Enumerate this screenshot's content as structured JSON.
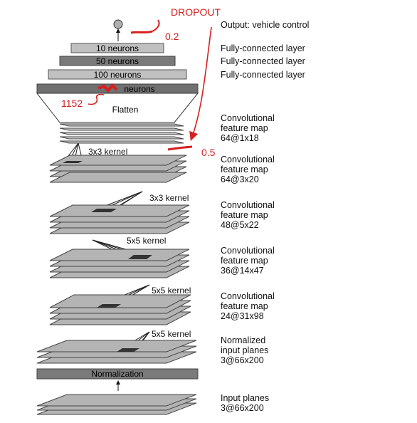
{
  "annotations": {
    "dropout": "DROPOUT",
    "rate_fc": "0.2",
    "rate_conv": "0.5",
    "flatten_count": "1152"
  },
  "layers": {
    "output": "Output: vehicle control",
    "fc1": "Fully-connected layer",
    "fc2": "Fully-connected layer",
    "fc3": "Fully-connected layer",
    "conv5": "Convolutional\nfeature map\n64@1x18",
    "conv4": "Convolutional\nfeature map\n64@3x20",
    "conv3": "Convolutional\nfeature map\n48@5x22",
    "conv2": "Convolutional\nfeature map\n36@14x47",
    "conv1": "Convolutional\nfeature map\n24@31x98",
    "normalized": "Normalized\ninput planes\n3@66x200",
    "input": "Input planes\n3@66x200"
  },
  "bars": {
    "n10": "10 neurons",
    "n50": "50 neurons",
    "n100": "100 neurons",
    "n_flat_suffix": "neurons",
    "flatten": "Flatten",
    "normalization": "Normalization"
  },
  "kernels": {
    "k1": "3x3 kernel",
    "k2": "3x3 kernel",
    "k3": "5x5 kernel",
    "k4": "5x5 kernel",
    "k5": "5x5 kernel"
  },
  "colors": {
    "annotation": "#d62020",
    "dark_bar": "#707070",
    "light_bar": "#c0c0c0",
    "plane": "#b4b4b4"
  }
}
